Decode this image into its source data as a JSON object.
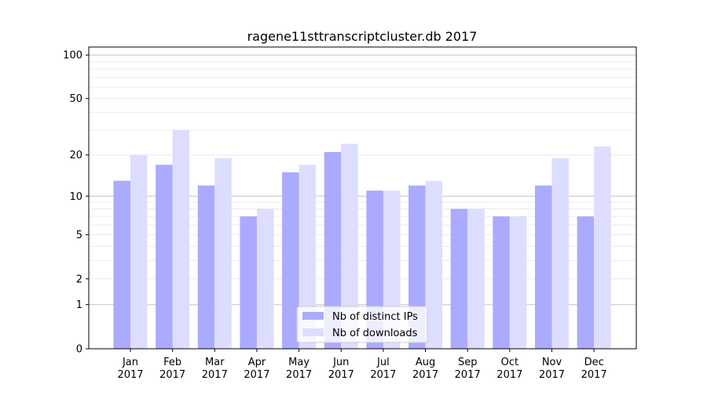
{
  "chart_data": {
    "type": "bar",
    "title": "ragene11sttranscriptcluster.db 2017",
    "xlabel": "",
    "ylabel": "",
    "yscale": "symlog",
    "ylim": [
      0,
      114
    ],
    "yticks": [
      0,
      1,
      2,
      5,
      10,
      20,
      50,
      100
    ],
    "grid": true,
    "legend_placement": "lower center",
    "categories": [
      "Jan\n2017",
      "Feb\n2017",
      "Mar\n2017",
      "Apr\n2017",
      "May\n2017",
      "Jun\n2017",
      "Jul\n2017",
      "Aug\n2017",
      "Sep\n2017",
      "Oct\n2017",
      "Nov\n2017",
      "Dec\n2017"
    ],
    "series": [
      {
        "name": "Nb of distinct IPs",
        "color": "#aaaaff",
        "values": [
          13,
          17,
          12,
          7,
          15,
          21,
          11,
          12,
          8,
          7,
          12,
          7
        ]
      },
      {
        "name": "Nb of downloads",
        "color": "#ddddff",
        "values": [
          20,
          30,
          19,
          8,
          17,
          24,
          11,
          13,
          8,
          7,
          19,
          23
        ]
      }
    ]
  }
}
